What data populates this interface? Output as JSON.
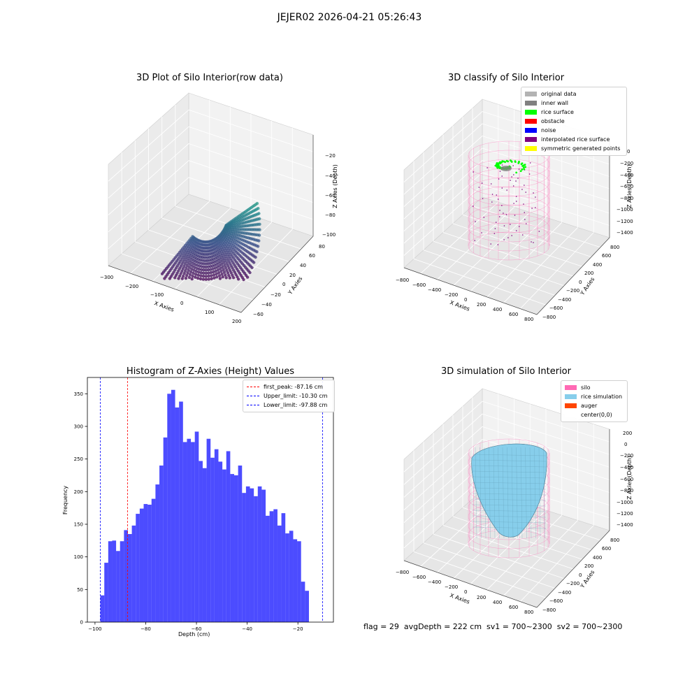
{
  "suptitle": "JEJER02 2026-04-21 05:26:43",
  "panel1": {
    "title": "3D Plot of Silo Interior(row data)",
    "xlabel": "X Axies",
    "ylabel": "Y Axies",
    "zlabel": "Z Axies (Depth)",
    "xticks": [
      "−300",
      "−200",
      "−100",
      "0",
      "100",
      "200"
    ],
    "yticks": [
      "−60",
      "−40",
      "−20",
      "0",
      "20",
      "40",
      "60",
      "80"
    ],
    "zticks": [
      "−20",
      "−40",
      "−60",
      "−80",
      "−100"
    ],
    "colormap": "viridis"
  },
  "panel2": {
    "title": "3D classify of Silo Interior",
    "xlabel": "X Axies",
    "ylabel": "Y Axies",
    "zlabel": "Z Axies (Depth)",
    "xticks": [
      "−800",
      "−600",
      "−400",
      "−200",
      "0",
      "200",
      "400",
      "600",
      "800"
    ],
    "yticks": [
      "−800",
      "−600",
      "−400",
      "−200",
      "0",
      "200",
      "400",
      "600",
      "800"
    ],
    "zticks": [
      "0",
      "−200",
      "−400",
      "−600",
      "−800",
      "−1000",
      "−1200",
      "−1400"
    ],
    "legend": [
      {
        "label": "original data",
        "color": "#b3b3b3"
      },
      {
        "label": "inner wall",
        "color": "#808080"
      },
      {
        "label": "rice surface",
        "color": "#00ff00"
      },
      {
        "label": "obstacle",
        "color": "#ff0000"
      },
      {
        "label": "noise",
        "color": "#0000ff"
      },
      {
        "label": "interpolated rice surface",
        "color": "#800080"
      },
      {
        "label": "symmetric generated points",
        "color": "#ffff00"
      }
    ]
  },
  "panel3": {
    "title": "3D simulation of Silo Interior",
    "xlabel": "X Axies",
    "ylabel": "Y Axies",
    "zlabel": "Z Axies (Depth)",
    "xticks": [
      "−800",
      "−600",
      "−400",
      "−200",
      "0",
      "200",
      "400",
      "600",
      "800"
    ],
    "yticks": [
      "−800",
      "−600",
      "−400",
      "−200",
      "0",
      "200",
      "400",
      "600",
      "800"
    ],
    "zticks": [
      "200",
      "0",
      "−200",
      "−400",
      "−600",
      "−800",
      "−1000",
      "−1200",
      "−1400"
    ],
    "legend": [
      {
        "label": "silo",
        "color": "#ff69b4"
      },
      {
        "label": "rice simulation",
        "color": "#87ceeb"
      },
      {
        "label": "auger",
        "color": "#ff4500"
      },
      {
        "label": "center(0,0)",
        "color": "#ffffff"
      }
    ]
  },
  "footer": "flag = 29  avgDepth = 222 cm  sv1 = 700~2300  sv2 = 700~2300",
  "chart_data": {
    "type": "bar",
    "title": "Histogram of Z-Axies (Height) Values",
    "xlabel": "Depth (cm)",
    "ylabel": "Frequency",
    "xlim": [
      -103,
      -6
    ],
    "ylim": [
      0,
      375
    ],
    "xticks": [
      -100,
      -80,
      -60,
      -40,
      -20
    ],
    "yticks": [
      0,
      50,
      100,
      150,
      200,
      250,
      300,
      350
    ],
    "bar_color": "#0000ff",
    "bin_start": -97.88,
    "bin_width": 1.5515,
    "values": [
      41,
      91,
      124,
      125,
      109,
      124,
      141,
      135,
      148,
      166,
      174,
      181,
      180,
      189,
      211,
      240,
      283,
      350,
      356,
      329,
      338,
      276,
      281,
      276,
      292,
      247,
      236,
      281,
      252,
      265,
      246,
      234,
      262,
      227,
      225,
      240,
      198,
      208,
      205,
      193,
      208,
      203,
      163,
      170,
      173,
      148,
      167,
      136,
      140,
      127,
      124,
      62,
      48
    ],
    "vlines": [
      {
        "label": "first_peak: -87.16 cm",
        "x": -87.16,
        "color": "#ff0000"
      },
      {
        "label": "Upper_limit: -10.30 cm",
        "x": -10.3,
        "color": "#0000ff"
      },
      {
        "label": "Lower_limit: -97.88 cm",
        "x": -97.88,
        "color": "#0000ff"
      }
    ],
    "legend_position": "top-right",
    "grid": false
  }
}
